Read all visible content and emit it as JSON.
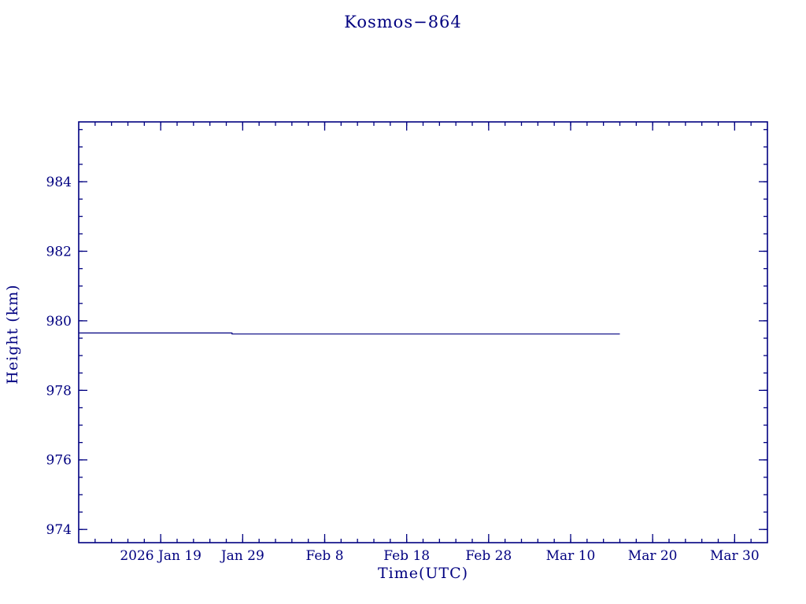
{
  "page": {
    "title": "Kosmos−864"
  },
  "chart_data": {
    "type": "line",
    "title": "Kosmos−864",
    "xlabel": "Time(UTC)",
    "ylabel": "Height (km)",
    "x_unit": "days from 2026 Jan 9",
    "x_range_days": [
      0,
      84
    ],
    "ylim": [
      973.62,
      985.72
    ],
    "x_ticks": [
      {
        "day": 10,
        "label": "2026 Jan 19"
      },
      {
        "day": 20,
        "label": "Jan 29"
      },
      {
        "day": 30,
        "label": "Feb 8"
      },
      {
        "day": 40,
        "label": "Feb 18"
      },
      {
        "day": 50,
        "label": "Feb 28"
      },
      {
        "day": 60,
        "label": "Mar 10"
      },
      {
        "day": 70,
        "label": "Mar 20"
      },
      {
        "day": 80,
        "label": "Mar 30"
      }
    ],
    "x_minor_step": 2,
    "y_ticks": [
      974,
      976,
      978,
      980,
      982,
      984
    ],
    "y_minor_step": 0.5,
    "grid": "off",
    "legend": "none",
    "series": [
      {
        "name": "height",
        "color": "#000080",
        "points": [
          [
            0,
            979.65
          ],
          [
            18.7,
            979.65
          ],
          [
            18.7,
            979.62
          ],
          [
            66,
            979.62
          ]
        ]
      }
    ],
    "accent_color": "#000080",
    "background_color": "#ffffff"
  }
}
